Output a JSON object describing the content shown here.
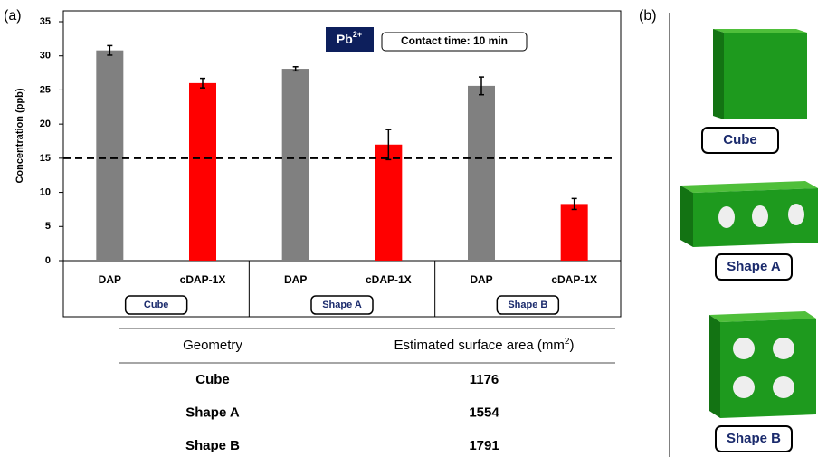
{
  "chart_data": {
    "type": "bar",
    "panel_label": "(a)",
    "ylabel": "Concentration (ppb)",
    "ion": "Pb",
    "ion_charge": "2+",
    "annotation": "Contact time: 10 min",
    "categories": [
      "DAP",
      "cDAP-1X",
      "DAP",
      "cDAP-1X",
      "DAP",
      "cDAP-1X"
    ],
    "groups": [
      "Cube",
      "Shape A",
      "Shape B"
    ],
    "values": [
      30.8,
      26.0,
      28.1,
      17.0,
      25.6,
      8.3
    ],
    "errors": [
      0.7,
      0.7,
      0.3,
      2.2,
      1.3,
      0.8
    ],
    "colors": [
      "#808080",
      "#ff0000",
      "#808080",
      "#ff0000",
      "#808080",
      "#ff0000"
    ],
    "threshold": 15,
    "ylim": [
      0,
      35
    ],
    "yticks": [
      0,
      5,
      10,
      15,
      20,
      25,
      30,
      35
    ]
  },
  "table": {
    "headers": [
      "Geometry",
      "Estimated surface area (mm"
    ],
    "header_sup": "2",
    "header_tail": ")",
    "rows": [
      [
        "Cube",
        1176
      ],
      [
        "Shape A",
        1554
      ],
      [
        "Shape B",
        1791
      ]
    ]
  },
  "panel_b": {
    "label": "(b)",
    "shapes": [
      "Cube",
      "Shape A",
      "Shape B"
    ]
  }
}
